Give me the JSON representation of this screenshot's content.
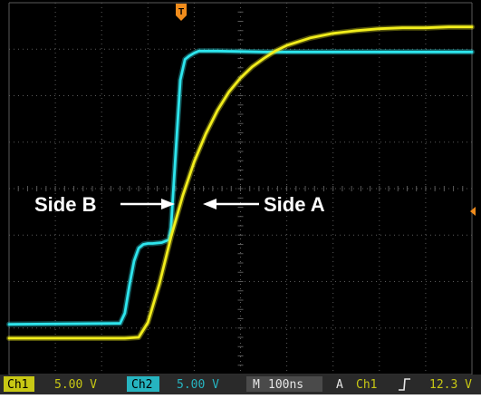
{
  "chart_data": {
    "type": "line",
    "title": "",
    "xlabel": "",
    "ylabel": "",
    "x_unit": "ns",
    "xlim": [
      -550,
      450
    ],
    "ylim": [
      -20,
      20
    ],
    "grid": true,
    "time_per_div_ns": 100,
    "volts_per_div": 5,
    "series": [
      {
        "channel": "Ch1",
        "color": "#f2ee1c",
        "x": [
          -550,
          -300,
          -270,
          -250,
          -225,
          -200,
          -175,
          -150,
          -125,
          -100,
          -75,
          -50,
          -25,
          0,
          25,
          50,
          100,
          150,
          200,
          250,
          300,
          350,
          400,
          450
        ],
        "y": [
          -16.1,
          -16.1,
          -16.0,
          -14.4,
          -10.2,
          -5.2,
          -0.8,
          2.9,
          5.9,
          8.4,
          10.4,
          11.9,
          13.1,
          14.0,
          14.8,
          15.4,
          16.2,
          16.7,
          17.0,
          17.2,
          17.3,
          17.3,
          17.4,
          17.4
        ]
      },
      {
        "channel": "Ch2",
        "color": "#2ee6ee",
        "x": [
          -550,
          -310,
          -300,
          -290,
          -280,
          -270,
          -260,
          -250,
          -240,
          -220,
          -205,
          -200,
          -190,
          -180,
          -170,
          -160,
          -150,
          -140,
          -100,
          0,
          100,
          200,
          300,
          450
        ],
        "y": [
          -14.6,
          -14.5,
          -13.4,
          -10.4,
          -7.8,
          -6.4,
          -6.0,
          -5.9,
          -5.9,
          -5.8,
          -5.5,
          -4.2,
          3.9,
          11.7,
          13.9,
          14.3,
          14.6,
          14.8,
          14.8,
          14.7,
          14.7,
          14.7,
          14.7,
          14.7
        ]
      }
    ],
    "annotations": [
      {
        "text": "Side B",
        "arrow": "right",
        "at_channel": "Ch2"
      },
      {
        "text": "Side A",
        "arrow": "left",
        "at_channel": "Ch1"
      }
    ]
  },
  "status_bar": {
    "ch1_tag": "Ch1",
    "ch1_scale": "5.00 V",
    "ch2_tag": "Ch2",
    "ch2_scale": "5.00 V",
    "timebase_tag": "M",
    "timebase_value": "100ns",
    "trigger_mode": "A",
    "trigger_source": "Ch1",
    "trigger_slope_icon": "rising-edge-icon",
    "trigger_level": "12.3 V"
  },
  "markers": {
    "trigger_position_label": "T",
    "trigger_level_icon": "trigger-level-arrow-icon"
  },
  "colors": {
    "ch1": "#f2ee1c",
    "ch2": "#2ee6ee",
    "background": "#000000",
    "grid": "#5a5a5a",
    "trigger_marker": "#f08c1c",
    "status_ch1": "#c8c814",
    "status_ch2": "#26b4c0",
    "status_bg": "#2a2a2a"
  }
}
